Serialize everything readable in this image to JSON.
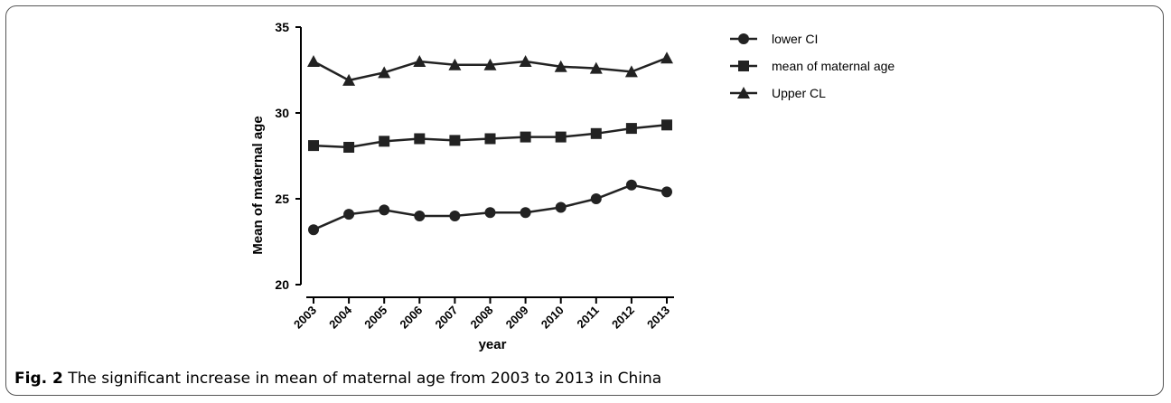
{
  "chart_data": {
    "type": "line",
    "title": "",
    "xlabel": "year",
    "ylabel": "Mean of maternal age",
    "categories": [
      "2003",
      "2004",
      "2005",
      "2006",
      "2007",
      "2008",
      "2009",
      "2010",
      "2011",
      "2012",
      "2013"
    ],
    "ylim": [
      20,
      35
    ],
    "yticks": [
      "20",
      "25",
      "30",
      "35"
    ],
    "grid": false,
    "legend_position": "right",
    "series": [
      {
        "name": "lower CI",
        "marker": "circle",
        "values": [
          23.2,
          24.1,
          24.35,
          24.0,
          24.0,
          24.2,
          24.2,
          24.5,
          25.0,
          25.8,
          25.4
        ]
      },
      {
        "name": "mean of maternal age",
        "marker": "square",
        "values": [
          28.1,
          28.0,
          28.35,
          28.5,
          28.4,
          28.5,
          28.6,
          28.6,
          28.8,
          29.1,
          29.3
        ]
      },
      {
        "name": "Upper CL",
        "marker": "triangle",
        "values": [
          33.0,
          31.9,
          32.35,
          33.0,
          32.8,
          32.8,
          33.0,
          32.7,
          32.6,
          32.4,
          33.2
        ]
      }
    ],
    "line_color": "#222222"
  },
  "caption": {
    "label": "Fig. 2",
    "text": " The significant increase in mean of maternal age from 2003 to 2013 in China"
  }
}
